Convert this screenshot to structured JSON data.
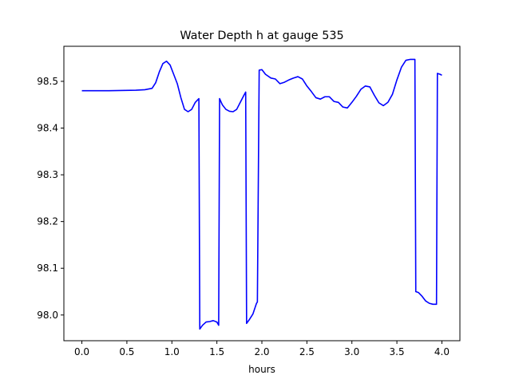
{
  "chart_data": {
    "type": "line",
    "title": "Water Depth h at gauge 535",
    "xlabel": "hours",
    "ylabel": "",
    "xlim": [
      -0.2,
      4.2
    ],
    "ylim": [
      97.945,
      98.575
    ],
    "xticks": [
      0.0,
      0.5,
      1.0,
      1.5,
      2.0,
      2.5,
      3.0,
      3.5,
      4.0
    ],
    "xtick_labels": [
      "0.0",
      "0.5",
      "1.0",
      "1.5",
      "2.0",
      "2.5",
      "3.0",
      "3.5",
      "4.0"
    ],
    "yticks": [
      98.0,
      98.1,
      98.2,
      98.3,
      98.4,
      98.5
    ],
    "ytick_labels": [
      "98.0",
      "98.1",
      "98.2",
      "98.3",
      "98.4",
      "98.5"
    ],
    "grid": false,
    "series": [
      {
        "color": "#0000ff",
        "x": [
          0.0,
          0.3,
          0.6,
          0.7,
          0.78,
          0.82,
          0.86,
          0.9,
          0.94,
          0.98,
          1.02,
          1.06,
          1.1,
          1.14,
          1.18,
          1.22,
          1.26,
          1.3,
          1.31,
          1.34,
          1.38,
          1.42,
          1.46,
          1.5,
          1.52,
          1.53,
          1.56,
          1.6,
          1.64,
          1.68,
          1.72,
          1.76,
          1.8,
          1.82,
          1.83,
          1.86,
          1.9,
          1.94,
          1.95,
          1.97,
          2.0,
          2.04,
          2.1,
          2.15,
          2.2,
          2.25,
          2.3,
          2.35,
          2.4,
          2.45,
          2.5,
          2.55,
          2.6,
          2.65,
          2.7,
          2.75,
          2.8,
          2.85,
          2.9,
          2.95,
          3.0,
          3.05,
          3.1,
          3.15,
          3.2,
          3.25,
          3.3,
          3.35,
          3.4,
          3.45,
          3.5,
          3.55,
          3.6,
          3.65,
          3.7,
          3.71,
          3.74,
          3.78,
          3.82,
          3.86,
          3.9,
          3.94,
          3.95,
          3.98,
          4.0
        ],
        "y": [
          98.48,
          98.48,
          98.481,
          98.482,
          98.485,
          98.497,
          98.52,
          98.538,
          98.543,
          98.535,
          98.515,
          98.495,
          98.465,
          98.44,
          98.435,
          98.44,
          98.455,
          98.463,
          97.97,
          97.978,
          97.985,
          97.986,
          97.988,
          97.985,
          97.978,
          98.463,
          98.45,
          98.44,
          98.436,
          98.435,
          98.44,
          98.455,
          98.47,
          98.477,
          97.982,
          97.99,
          98.002,
          98.025,
          98.028,
          98.524,
          98.525,
          98.515,
          98.507,
          98.505,
          98.495,
          98.498,
          98.503,
          98.507,
          98.51,
          98.505,
          98.49,
          98.478,
          98.465,
          98.462,
          98.467,
          98.467,
          98.457,
          98.455,
          98.445,
          98.443,
          98.455,
          98.468,
          98.483,
          98.49,
          98.488,
          98.47,
          98.454,
          98.448,
          98.455,
          98.472,
          98.503,
          98.53,
          98.545,
          98.547,
          98.547,
          98.05,
          98.048,
          98.04,
          98.03,
          98.025,
          98.023,
          98.023,
          98.517,
          98.515,
          98.513
        ]
      }
    ]
  }
}
